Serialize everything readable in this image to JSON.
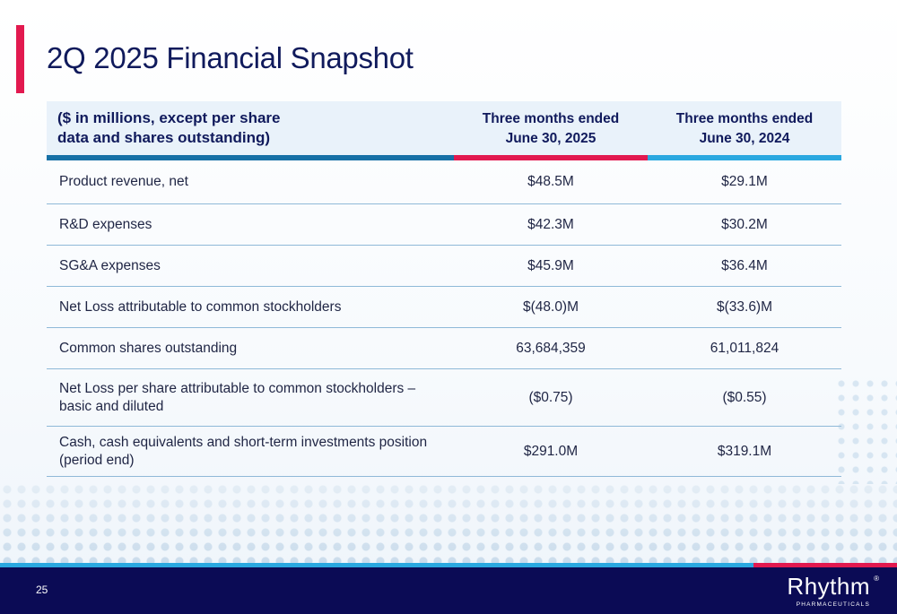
{
  "slide": {
    "title": "2Q 2025 Financial Snapshot",
    "page_number": "25"
  },
  "table": {
    "header": {
      "label_line1": "($ in millions, except per share",
      "label_line2": "data and shares outstanding)",
      "col1_line1": "Three months ended",
      "col1_line2": "June 30, 2025",
      "col2_line1": "Three months ended",
      "col2_line2": "June 30, 2024"
    },
    "rows": [
      {
        "label": "Product revenue, net",
        "v2025": "$48.5M",
        "v2024": "$29.1M"
      },
      {
        "label": "R&D expenses",
        "v2025": "$42.3M",
        "v2024": "$30.2M"
      },
      {
        "label": "SG&A expenses",
        "v2025": "$45.9M",
        "v2024": "$36.4M"
      },
      {
        "label": "Net Loss attributable to common stockholders",
        "v2025": "$(48.0)M",
        "v2024": "$(33.6)M"
      },
      {
        "label": "Common shares outstanding",
        "v2025": "63,684,359",
        "v2024": "61,011,824"
      },
      {
        "label_line1": "Net Loss per share attributable to common stockholders –",
        "label_line2": "basic and diluted",
        "v2025": "($0.75)",
        "v2024": "($0.55)"
      },
      {
        "label_line1": "Cash, cash equivalents and short-term investments position",
        "label_line2": "(period end)",
        "v2025": "$291.0M",
        "v2024": "$319.1M"
      }
    ]
  },
  "logo": {
    "wordmark": "Rhythm",
    "registered": "®",
    "tagline": "PHARMACEUTICALS"
  },
  "colors": {
    "navy": "#101a5c",
    "accent_red": "#e2194f",
    "accent_blue": "#2aa8e0",
    "rule_blue": "#1670a6",
    "footer": "#0b0b55"
  }
}
